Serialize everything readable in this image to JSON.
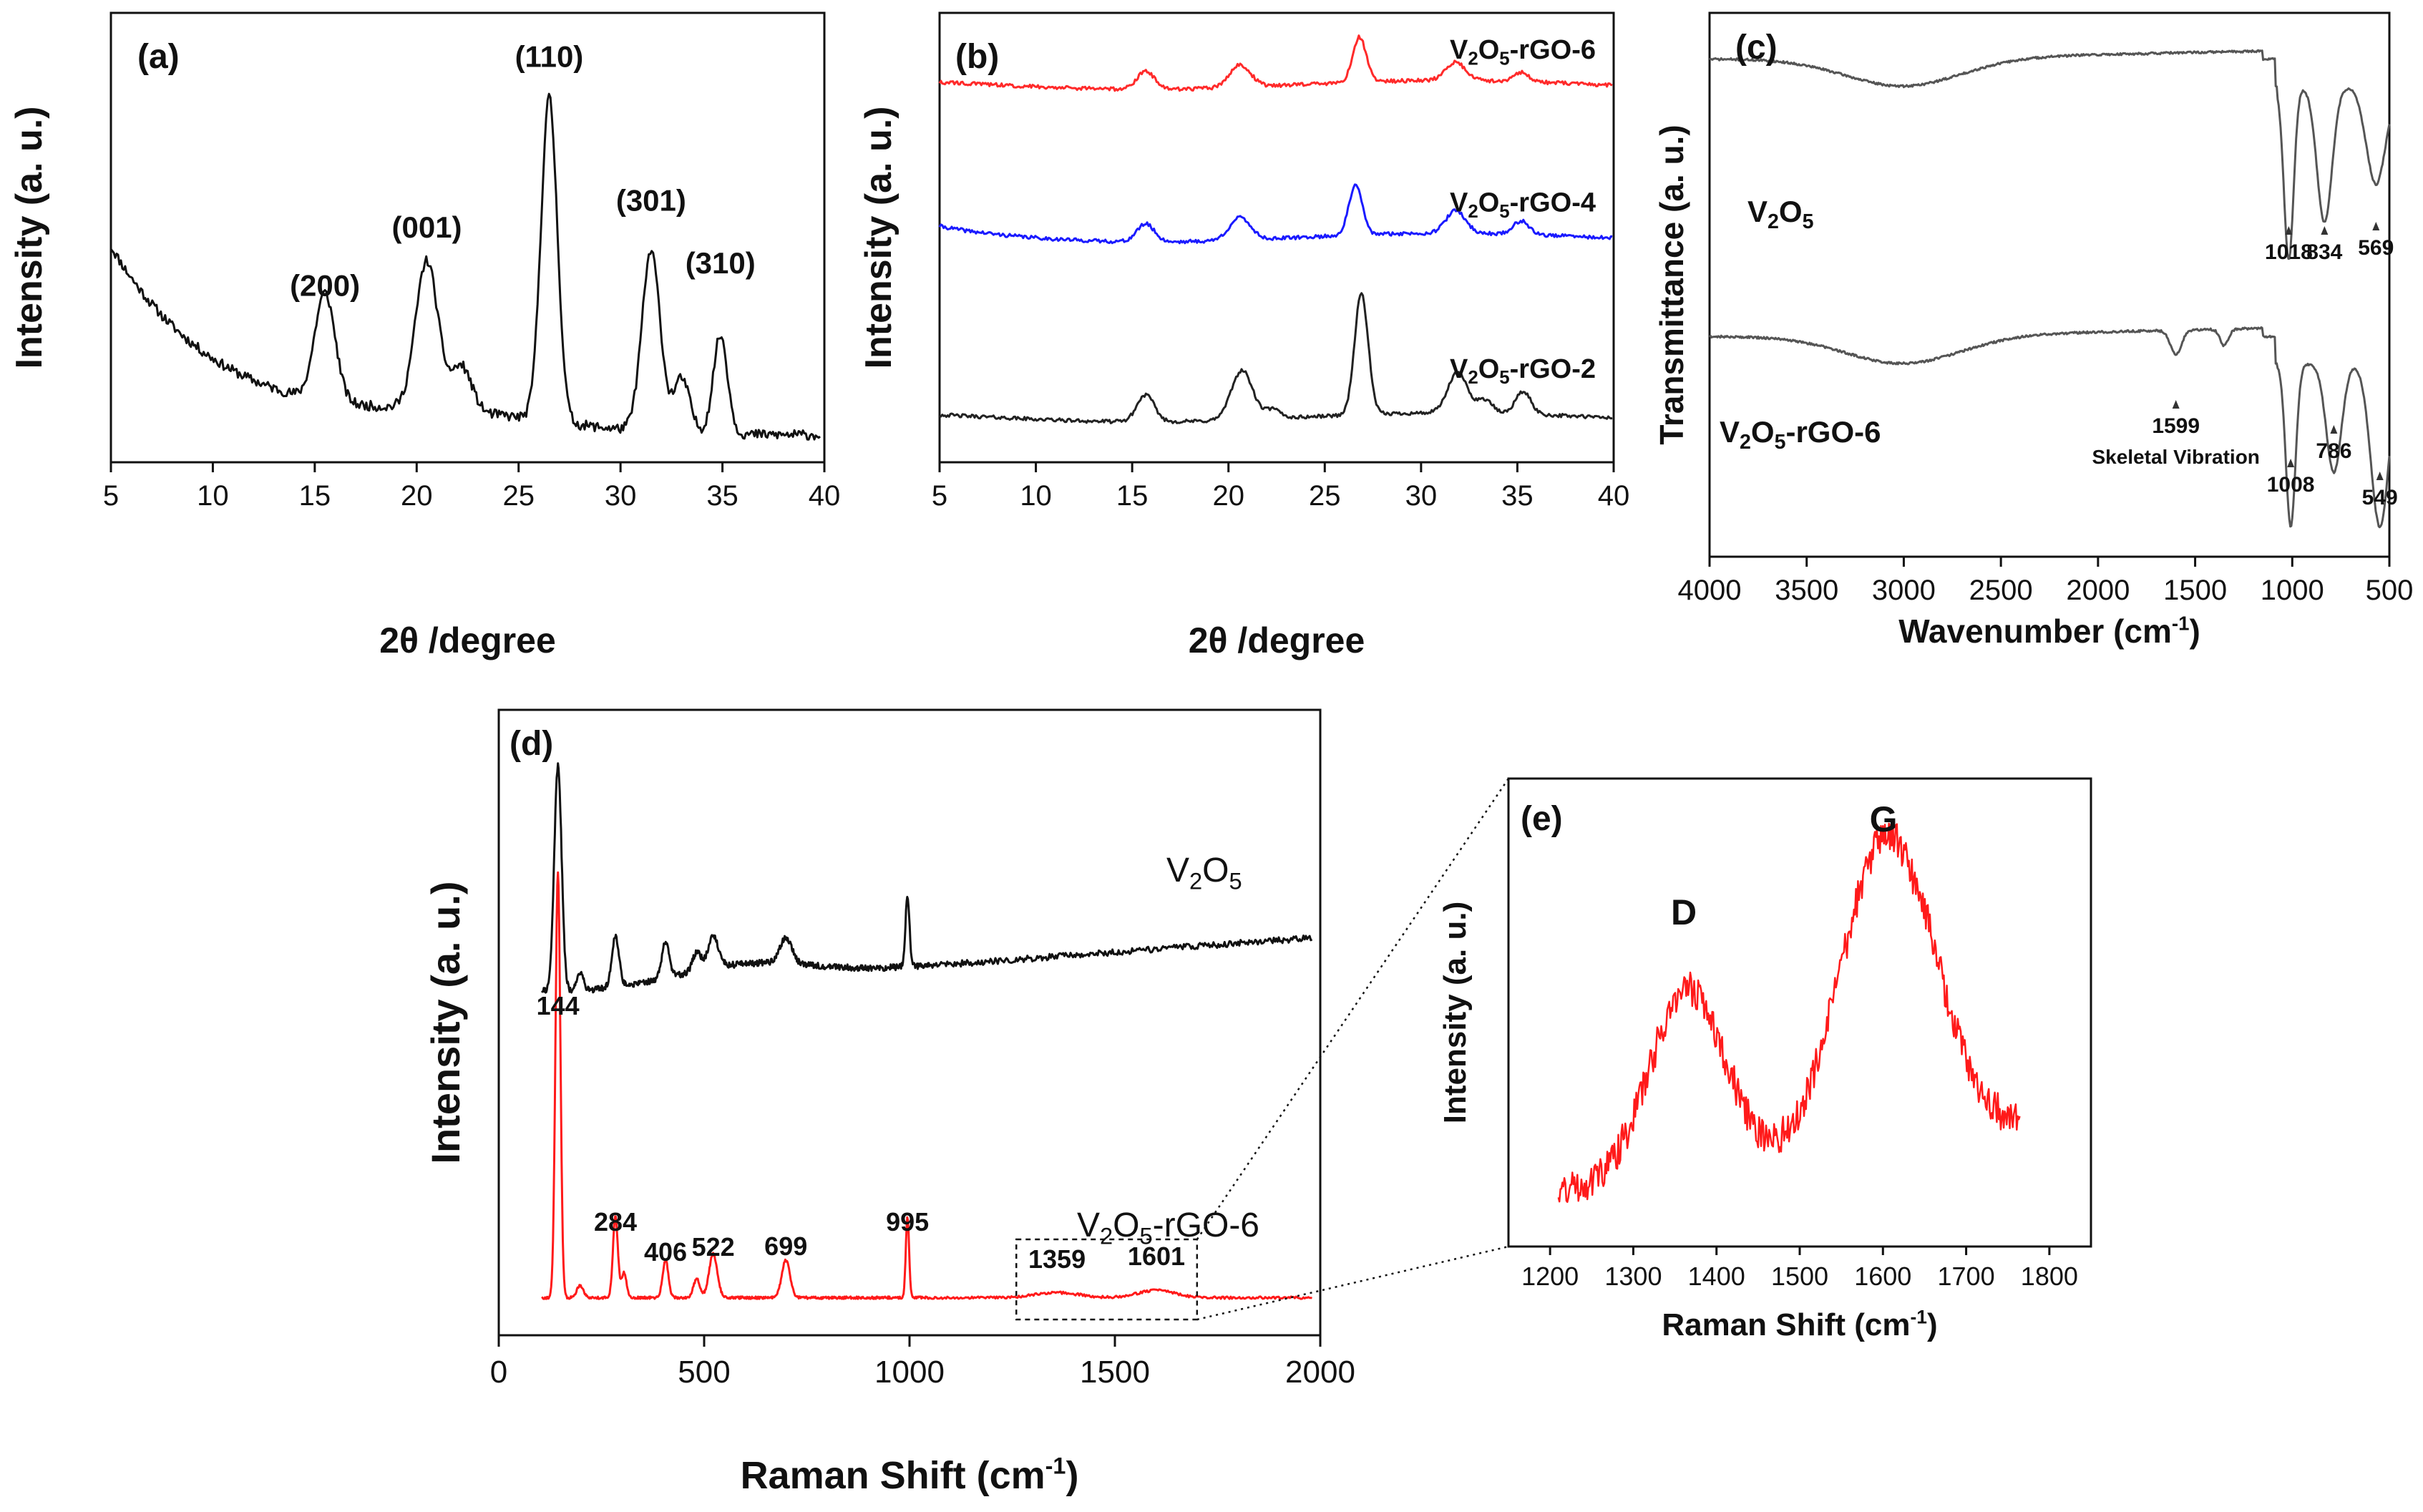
{
  "chart_data": [
    {
      "panel": "(a)",
      "type": "line",
      "xlabel": "2θ /degree",
      "ylabel": "Intensity (a. u.)",
      "xlim": [
        5,
        40
      ],
      "xticks": [
        5,
        10,
        15,
        20,
        25,
        30,
        35,
        40
      ],
      "yticks_shown": false,
      "grid": false,
      "series": [
        {
          "color": "#111111",
          "peaks": [
            [
              15.5,
              0.24,
              0.5
            ],
            [
              20.5,
              0.33,
              0.55
            ],
            [
              22.2,
              0.1,
              0.5
            ],
            [
              26.5,
              0.72,
              0.4
            ],
            [
              31.5,
              0.4,
              0.45
            ],
            [
              33,
              0.12,
              0.4
            ],
            [
              34.9,
              0.22,
              0.35
            ]
          ]
        }
      ],
      "annotations": [
        {
          "text": "(200)",
          "x": 15.5
        },
        {
          "text": "(001)",
          "x": 20.5
        },
        {
          "text": "(110)",
          "x": 26.5
        },
        {
          "text": "(301)",
          "x": 31.5
        },
        {
          "text": "(310)",
          "x": 34.9
        }
      ]
    },
    {
      "panel": "(b)",
      "type": "line",
      "xlabel": "2θ /degree",
      "ylabel": "Intensity (a. u.)",
      "xlim": [
        5,
        40
      ],
      "xticks": [
        5,
        10,
        15,
        20,
        25,
        30,
        35,
        40
      ],
      "yticks_shown": false,
      "grid": false,
      "series": [
        {
          "name": "V₂O₅-rGO-6",
          "color": "#ff2a2a",
          "offset": 0.84,
          "peaks": [
            [
              15.7,
              0.04,
              0.45
            ],
            [
              20.6,
              0.05,
              0.55
            ],
            [
              26.8,
              0.1,
              0.35
            ],
            [
              31.8,
              0.04,
              0.5
            ],
            [
              35.2,
              0.02,
              0.4
            ]
          ]
        },
        {
          "name": "V₂O₅-rGO-4",
          "color": "#1a1aff",
          "offset": 0.5,
          "peaks": [
            [
              15.7,
              0.04,
              0.45
            ],
            [
              20.6,
              0.05,
              0.55
            ],
            [
              26.6,
              0.11,
              0.35
            ],
            [
              31.8,
              0.05,
              0.5
            ],
            [
              35.2,
              0.03,
              0.4
            ]
          ]
        },
        {
          "name": "V₂O₅-rGO-2",
          "color": "#222222",
          "offset": 0.1,
          "peaks": [
            [
              15.7,
              0.06,
              0.45
            ],
            [
              20.7,
              0.11,
              0.55
            ],
            [
              22.3,
              0.02,
              0.4
            ],
            [
              26.9,
              0.27,
              0.35
            ],
            [
              31.9,
              0.09,
              0.5
            ],
            [
              33.3,
              0.03,
              0.4
            ],
            [
              35.3,
              0.05,
              0.4
            ]
          ]
        }
      ]
    },
    {
      "panel": "(c)",
      "type": "line",
      "xlabel": "Wavenumber (cm⁻¹)",
      "ylabel": "Transmittance (a. u.)",
      "xlim": [
        4000,
        500
      ],
      "xticks": [
        4000,
        3500,
        3000,
        2500,
        2000,
        1500,
        1000,
        500
      ],
      "yticks_shown": false,
      "grid": false,
      "series": [
        {
          "name": "V₂O₅",
          "color": "#555555"
        },
        {
          "name": "V₂O₅-rGO-6",
          "color": "#555555"
        }
      ],
      "annotations": [
        {
          "text": "1018",
          "x": 1018,
          "series": "V₂O₅"
        },
        {
          "text": "834",
          "x": 834,
          "series": "V₂O₅"
        },
        {
          "text": "569",
          "x": 569,
          "series": "V₂O₅"
        },
        {
          "text": "1599",
          "x": 1599,
          "series": "V₂O₅-rGO-6"
        },
        {
          "text": "Skeletal Vibration",
          "x": 1599,
          "series": "V₂O₅-rGO-6"
        },
        {
          "text": "1008",
          "x": 1008,
          "series": "V₂O₅-rGO-6"
        },
        {
          "text": "786",
          "x": 786,
          "series": "V₂O₅-rGO-6"
        },
        {
          "text": "549",
          "x": 549,
          "series": "V₂O₅-rGO-6"
        }
      ]
    },
    {
      "panel": "(d)",
      "type": "line",
      "xlabel": "Raman Shift (cm⁻¹)",
      "ylabel": "Intensity (a. u.)",
      "xlim": [
        0,
        2000
      ],
      "xticks": [
        0,
        500,
        1000,
        1500,
        2000
      ],
      "yticks_shown": false,
      "grid": false,
      "series": [
        {
          "name": "V₂O₅",
          "color": "#111111",
          "offset": 0.55,
          "peaks": [
            [
              144,
              0.36,
              9
            ],
            [
              198,
              0.03,
              8
            ],
            [
              284,
              0.08,
              9
            ],
            [
              406,
              0.06,
              9
            ],
            [
              482,
              0.03,
              10
            ],
            [
              522,
              0.05,
              13
            ],
            [
              699,
              0.04,
              15
            ],
            [
              995,
              0.11,
              5
            ]
          ]
        },
        {
          "name": "V₂O₅-rGO-6",
          "color": "#ff1a1a",
          "offset": 0.06,
          "peaks": [
            [
              144,
              0.68,
              6
            ],
            [
              198,
              0.02,
              8
            ],
            [
              284,
              0.13,
              6
            ],
            [
              305,
              0.04,
              6
            ],
            [
              406,
              0.06,
              7
            ],
            [
              482,
              0.03,
              8
            ],
            [
              522,
              0.07,
              10
            ],
            [
              699,
              0.06,
              10
            ],
            [
              995,
              0.13,
              4
            ],
            [
              1359,
              0.008,
              55
            ],
            [
              1601,
              0.012,
              45
            ]
          ]
        }
      ],
      "annotations": [
        {
          "text": "144",
          "x": 144
        },
        {
          "text": "284",
          "x": 284
        },
        {
          "text": "406",
          "x": 406
        },
        {
          "text": "522",
          "x": 522
        },
        {
          "text": "699",
          "x": 699
        },
        {
          "text": "995",
          "x": 995
        },
        {
          "text": "1359",
          "x": 1359
        },
        {
          "text": "1601",
          "x": 1601
        }
      ],
      "inset_box_x": [
        1260,
        1700
      ]
    },
    {
      "panel": "(e)",
      "type": "line",
      "xlabel": "Raman Shift (cm⁻¹)",
      "ylabel": "Intensity (a. u.)",
      "xlim": [
        1150,
        1850
      ],
      "xticks": [
        1200,
        1300,
        1400,
        1500,
        1600,
        1700,
        1800
      ],
      "yticks_shown": false,
      "grid": false,
      "series": [
        {
          "color": "#ff1a1a",
          "peaks": [
            [
              1365,
              0.4,
              45
            ],
            [
              1605,
              0.68,
              55
            ]
          ]
        }
      ],
      "annotations": [
        {
          "text": "D",
          "x": 1365
        },
        {
          "text": "G",
          "x": 1605
        }
      ]
    }
  ]
}
